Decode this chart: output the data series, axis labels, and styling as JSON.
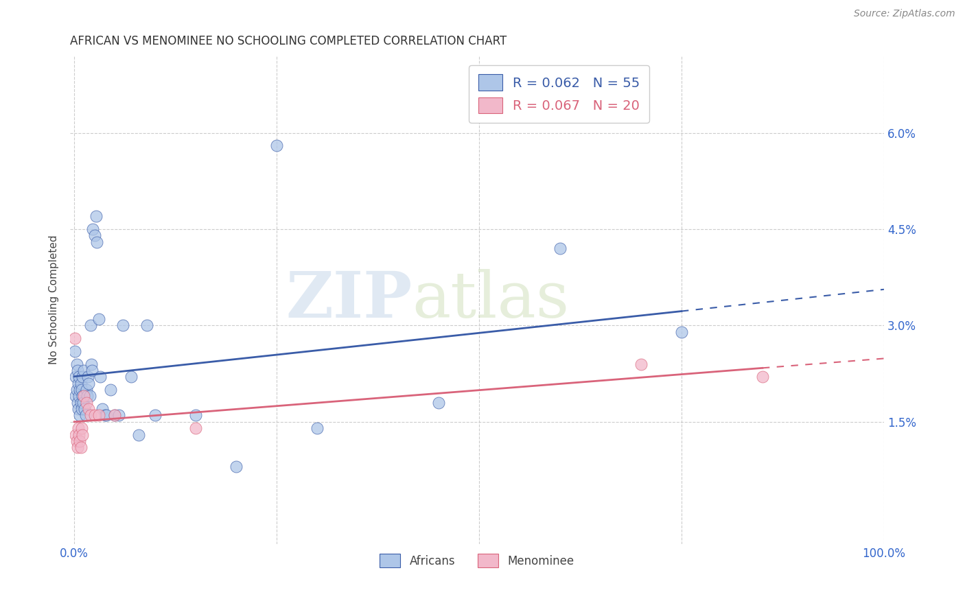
{
  "title": "AFRICAN VS MENOMINEE NO SCHOOLING COMPLETED CORRELATION CHART",
  "source": "Source: ZipAtlas.com",
  "ylabel": "No Schooling Completed",
  "xlim": [
    -0.005,
    1.0
  ],
  "ylim": [
    -0.004,
    0.072
  ],
  "xticks": [
    0.0,
    0.25,
    0.5,
    0.75,
    1.0
  ],
  "xticklabels": [
    "0.0%",
    "",
    "",
    "",
    "100.0%"
  ],
  "yticks": [
    0.015,
    0.03,
    0.045,
    0.06
  ],
  "yticklabels_right": [
    "1.5%",
    "3.0%",
    "4.5%",
    "6.0%"
  ],
  "africans_color": "#aec6e8",
  "menominee_color": "#f2b8ca",
  "trendline_africans_color": "#3a5ca8",
  "trendline_menominee_color": "#d9637a",
  "legend_text_africans": "R = 0.062   N = 55",
  "legend_text_menominee": "R = 0.067   N = 20",
  "watermark_zip": "ZIP",
  "watermark_atlas": "atlas",
  "background_color": "#ffffff",
  "grid_color": "#cccccc",
  "africans_x": [
    0.001,
    0.002,
    0.002,
    0.003,
    0.003,
    0.004,
    0.004,
    0.005,
    0.005,
    0.006,
    0.006,
    0.007,
    0.007,
    0.008,
    0.008,
    0.009,
    0.009,
    0.01,
    0.01,
    0.011,
    0.012,
    0.013,
    0.014,
    0.015,
    0.016,
    0.017,
    0.018,
    0.019,
    0.02,
    0.021,
    0.022,
    0.023,
    0.025,
    0.027,
    0.028,
    0.03,
    0.032,
    0.035,
    0.038,
    0.04,
    0.045,
    0.05,
    0.055,
    0.06,
    0.07,
    0.08,
    0.09,
    0.1,
    0.15,
    0.2,
    0.25,
    0.3,
    0.45,
    0.6,
    0.75
  ],
  "africans_y": [
    0.026,
    0.022,
    0.019,
    0.024,
    0.02,
    0.023,
    0.018,
    0.021,
    0.017,
    0.022,
    0.019,
    0.02,
    0.016,
    0.021,
    0.018,
    0.02,
    0.017,
    0.019,
    0.022,
    0.018,
    0.023,
    0.017,
    0.016,
    0.02,
    0.019,
    0.022,
    0.021,
    0.019,
    0.03,
    0.024,
    0.023,
    0.045,
    0.044,
    0.047,
    0.043,
    0.031,
    0.022,
    0.017,
    0.016,
    0.016,
    0.02,
    0.016,
    0.016,
    0.03,
    0.022,
    0.013,
    0.03,
    0.016,
    0.016,
    0.008,
    0.058,
    0.014,
    0.018,
    0.042,
    0.029
  ],
  "menominee_x": [
    0.001,
    0.002,
    0.003,
    0.004,
    0.005,
    0.006,
    0.007,
    0.008,
    0.009,
    0.01,
    0.012,
    0.015,
    0.018,
    0.02,
    0.025,
    0.03,
    0.05,
    0.15,
    0.7,
    0.85
  ],
  "menominee_y": [
    0.028,
    0.013,
    0.012,
    0.011,
    0.014,
    0.013,
    0.012,
    0.011,
    0.014,
    0.013,
    0.019,
    0.018,
    0.017,
    0.016,
    0.016,
    0.016,
    0.016,
    0.014,
    0.024,
    0.022
  ]
}
